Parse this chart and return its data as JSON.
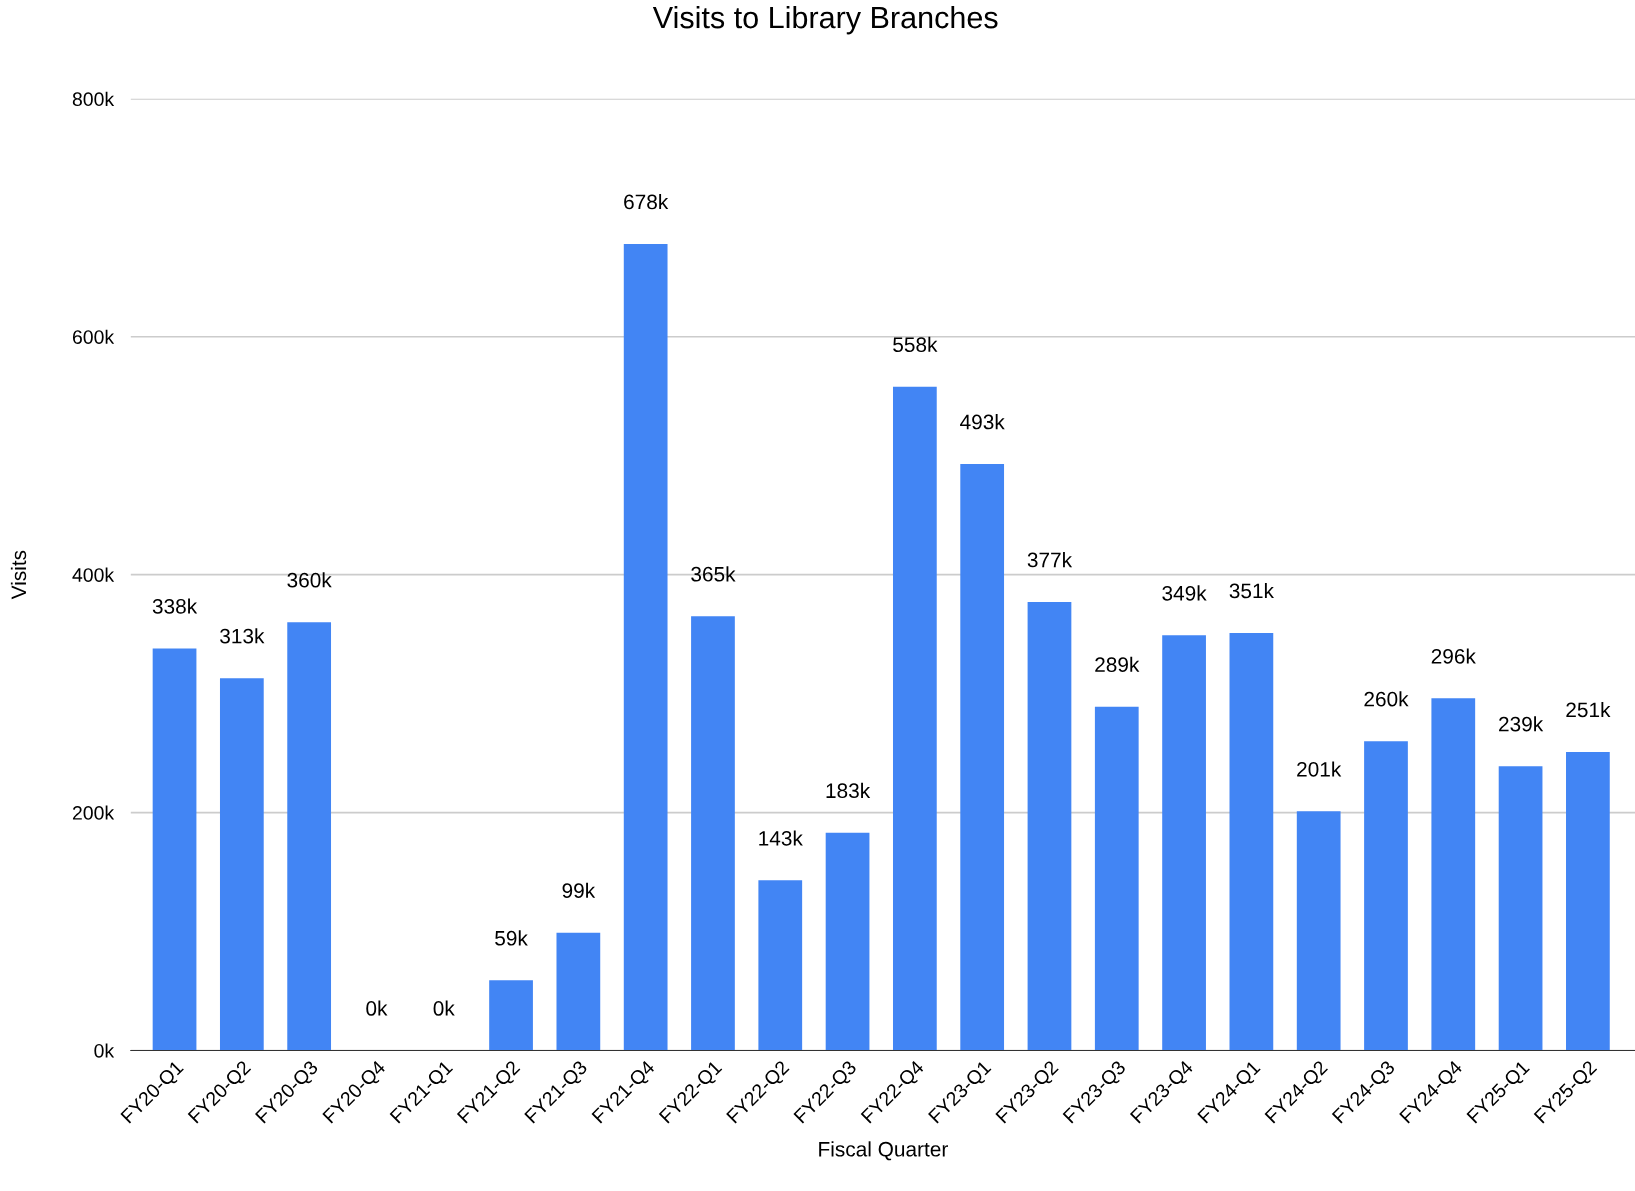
{
  "chart_data": {
    "type": "bar",
    "title": "Visits to Library Branches",
    "xlabel": "Fiscal Quarter",
    "ylabel": "Visits",
    "categories": [
      "FY20-Q1",
      "FY20-Q2",
      "FY20-Q3",
      "FY20-Q4",
      "FY21-Q1",
      "FY21-Q2",
      "FY21-Q3",
      "FY21-Q4",
      "FY22-Q1",
      "FY22-Q2",
      "FY22-Q3",
      "FY22-Q4",
      "FY23-Q1",
      "FY23-Q2",
      "FY23-Q3",
      "FY23-Q4",
      "FY24-Q1",
      "FY24-Q2",
      "FY24-Q3",
      "FY24-Q4",
      "FY25-Q1",
      "FY25-Q2"
    ],
    "values": [
      338000,
      313000,
      360000,
      0,
      0,
      59000,
      99000,
      678000,
      365000,
      143000,
      183000,
      558000,
      493000,
      377000,
      289000,
      349000,
      351000,
      201000,
      260000,
      296000,
      239000,
      251000
    ],
    "value_labels": [
      "338k",
      "313k",
      "360k",
      "0k",
      "0k",
      "59k",
      "99k",
      "678k",
      "365k",
      "143k",
      "183k",
      "558k",
      "493k",
      "377k",
      "289k",
      "349k",
      "351k",
      "201k",
      "260k",
      "296k",
      "239k",
      "251k"
    ],
    "color": "#4285f4",
    "ylim": [
      0,
      800000
    ],
    "yticks": [
      {
        "value": 0,
        "label": "0k"
      },
      {
        "value": 200000,
        "label": "200k"
      },
      {
        "value": 400000,
        "label": "400k"
      },
      {
        "value": 600000,
        "label": "600k"
      },
      {
        "value": 800000,
        "label": "800k"
      }
    ],
    "grid": "y",
    "legend": false
  }
}
